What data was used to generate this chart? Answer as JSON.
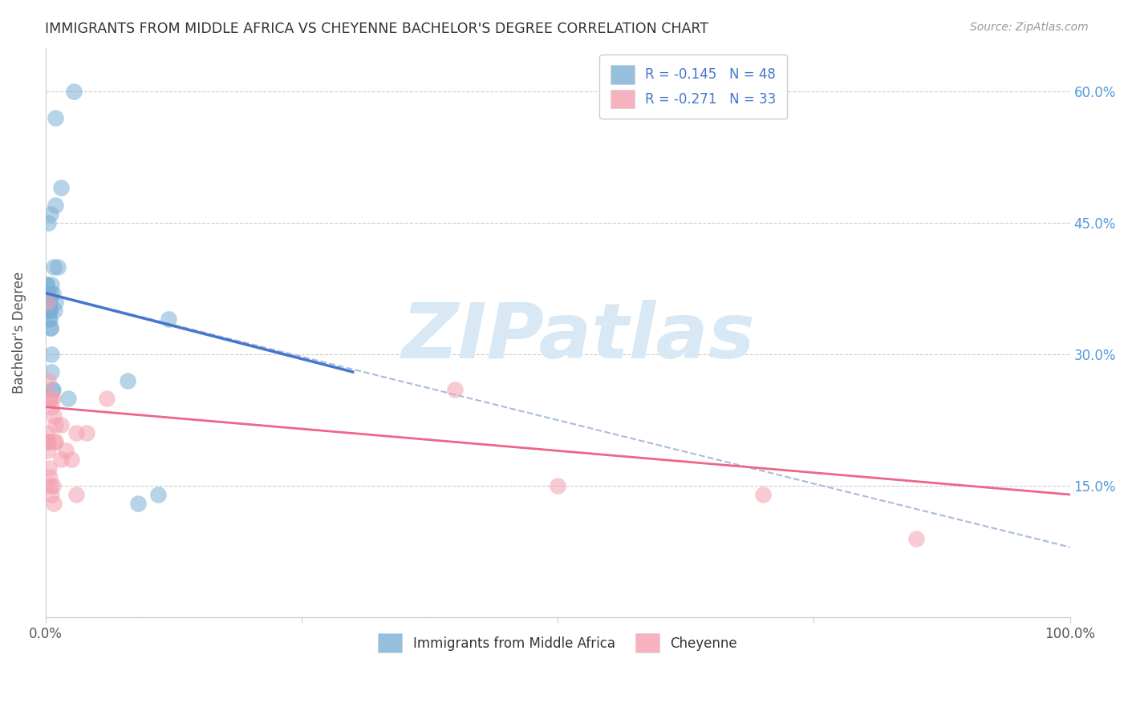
{
  "title": "IMMIGRANTS FROM MIDDLE AFRICA VS CHEYENNE BACHELOR'S DEGREE CORRELATION CHART",
  "source": "Source: ZipAtlas.com",
  "ylabel": "Bachelor's Degree",
  "legend1_label": "R = -0.145   N = 48",
  "legend2_label": "R = -0.271   N = 33",
  "legend_bottom1": "Immigrants from Middle Africa",
  "legend_bottom2": "Cheyenne",
  "blue_color": "#7BAFD4",
  "pink_color": "#F4A0B0",
  "trend_blue": "#4477CC",
  "trend_pink": "#EE6688",
  "trend_gray_dashed": "#AABBDD",
  "watermark": "ZIPatlas",
  "watermark_color": "#D8E8F4",
  "blue_scatter_x": [
    1.0,
    2.8,
    1.5,
    0.5,
    1.0,
    0.3,
    0.5,
    0.7,
    0.9,
    1.0,
    0.3,
    0.8,
    1.2,
    0.6,
    0.15,
    0.2,
    0.25,
    0.35,
    0.45,
    0.1,
    0.2,
    0.3,
    0.4,
    0.5,
    0.15,
    0.2,
    0.25,
    2.2,
    0.05,
    0.08,
    0.1,
    0.12,
    0.15,
    0.2,
    0.25,
    0.3,
    0.35,
    0.4,
    0.45,
    0.5,
    0.55,
    0.6,
    0.65,
    0.7,
    8.0,
    12.0,
    9.0,
    11.0
  ],
  "blue_scatter_y": [
    57,
    60,
    49,
    46,
    47,
    45,
    37,
    37,
    35,
    36,
    35,
    40,
    40,
    38,
    37,
    37,
    36,
    35,
    35,
    35,
    36,
    35,
    36,
    33,
    37,
    36,
    35,
    25,
    37,
    38,
    37,
    38,
    36,
    35,
    36,
    36,
    34,
    35,
    34,
    33,
    30,
    28,
    26,
    26,
    27,
    34,
    13,
    14
  ],
  "pink_scatter_x": [
    0.2,
    0.3,
    0.4,
    0.5,
    0.6,
    0.7,
    0.8,
    0.9,
    1.0,
    1.5,
    2.5,
    3.0,
    4.0,
    6.0,
    0.1,
    0.15,
    0.2,
    0.25,
    0.3,
    0.35,
    0.4,
    0.5,
    0.6,
    0.7,
    0.8,
    1.0,
    1.5,
    2.0,
    3.0,
    40.0,
    50.0,
    70.0,
    85.0
  ],
  "pink_scatter_y": [
    36,
    27,
    25,
    25,
    24,
    25,
    23,
    20,
    22,
    22,
    18,
    21,
    21,
    25,
    21,
    20,
    20,
    20,
    19,
    17,
    16,
    15,
    14,
    15,
    13,
    20,
    18,
    19,
    14,
    26,
    15,
    14,
    9
  ],
  "xlim": [
    0,
    100
  ],
  "ylim": [
    0,
    65
  ],
  "blue_trend_x0": 0,
  "blue_trend_x1": 30,
  "blue_trend_y0": 37,
  "blue_trend_y1": 28,
  "pink_trend_x0": 0,
  "pink_trend_x1": 100,
  "pink_trend_y0": 24,
  "pink_trend_y1": 14,
  "gray_trend_x0": 0,
  "gray_trend_x1": 100,
  "gray_trend_y0": 37,
  "gray_trend_y1": 8
}
